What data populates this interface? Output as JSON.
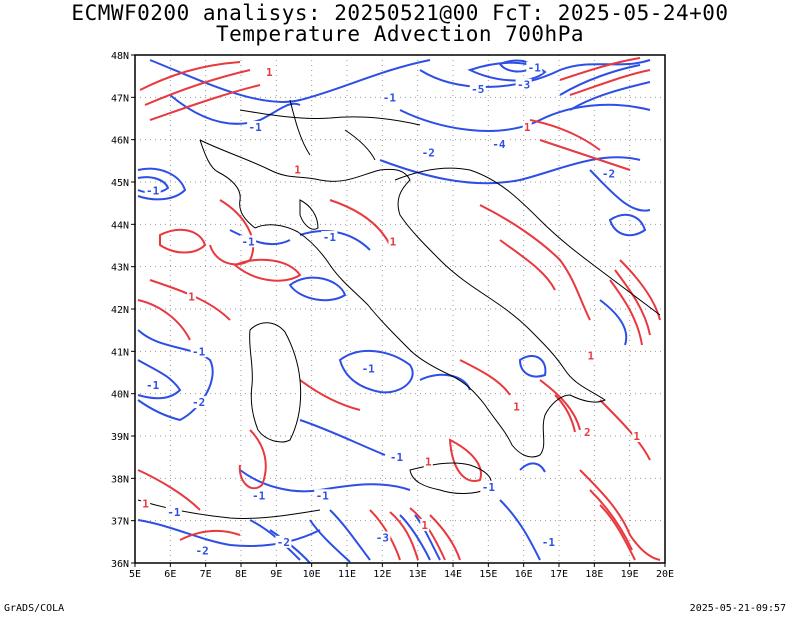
{
  "header": {
    "title_line1": "ECMWF0200 analisys: 20250521@00 FcT: 2025-05-24+00",
    "title_line2": "Temperature Advection 700hPa"
  },
  "footer": {
    "left": "GrADS/COLA",
    "right": "2025-05-21-09:57"
  },
  "map": {
    "lon_ticks": [
      "5E",
      "6E",
      "7E",
      "8E",
      "9E",
      "10E",
      "11E",
      "12E",
      "13E",
      "14E",
      "15E",
      "16E",
      "17E",
      "18E",
      "19E",
      "20E"
    ],
    "lat_ticks": [
      "48N",
      "47N",
      "46N",
      "45N",
      "44N",
      "43N",
      "42N",
      "41N",
      "40N",
      "39N",
      "38N",
      "37N",
      "36N"
    ],
    "lon_range": [
      5,
      20
    ],
    "lat_range": [
      36,
      48
    ],
    "positive_color": "#e8393f",
    "negative_color": "#2d4fe6",
    "coast_color": "#000000",
    "grid_style": "dotted",
    "contour_labels": [
      {
        "text": "-1",
        "lon": 16.3,
        "lat": 47.7,
        "sign": "neg"
      },
      {
        "text": "-3",
        "lon": 16.0,
        "lat": 47.3,
        "sign": "neg"
      },
      {
        "text": "-5",
        "lon": 14.7,
        "lat": 47.2,
        "sign": "neg"
      },
      {
        "text": "-2",
        "lon": 13.3,
        "lat": 45.7,
        "sign": "neg"
      },
      {
        "text": "-4",
        "lon": 15.3,
        "lat": 45.9,
        "sign": "neg"
      },
      {
        "text": "-2",
        "lon": 18.4,
        "lat": 45.2,
        "sign": "neg"
      },
      {
        "text": "-1",
        "lon": 12.2,
        "lat": 47.0,
        "sign": "neg"
      },
      {
        "text": "-1",
        "lon": 8.4,
        "lat": 46.3,
        "sign": "neg"
      },
      {
        "text": "-1",
        "lon": 5.5,
        "lat": 44.8,
        "sign": "neg"
      },
      {
        "text": "-1",
        "lon": 8.2,
        "lat": 43.6,
        "sign": "neg"
      },
      {
        "text": "-1",
        "lon": 10.5,
        "lat": 43.7,
        "sign": "neg"
      },
      {
        "text": "-1",
        "lon": 6.8,
        "lat": 41.0,
        "sign": "neg"
      },
      {
        "text": "-1",
        "lon": 5.5,
        "lat": 40.2,
        "sign": "neg"
      },
      {
        "text": "-2",
        "lon": 6.8,
        "lat": 39.8,
        "sign": "neg"
      },
      {
        "text": "-1",
        "lon": 11.6,
        "lat": 40.6,
        "sign": "neg"
      },
      {
        "text": "-1",
        "lon": 12.4,
        "lat": 38.5,
        "sign": "neg"
      },
      {
        "text": "-1",
        "lon": 10.3,
        "lat": 37.6,
        "sign": "neg"
      },
      {
        "text": "-1",
        "lon": 8.5,
        "lat": 37.6,
        "sign": "neg"
      },
      {
        "text": "-1",
        "lon": 15.0,
        "lat": 37.8,
        "sign": "neg"
      },
      {
        "text": "-1",
        "lon": 6.1,
        "lat": 37.2,
        "sign": "neg"
      },
      {
        "text": "-2",
        "lon": 6.9,
        "lat": 36.3,
        "sign": "neg"
      },
      {
        "text": "-2",
        "lon": 9.2,
        "lat": 36.5,
        "sign": "neg"
      },
      {
        "text": "-3",
        "lon": 12.0,
        "lat": 36.6,
        "sign": "neg"
      },
      {
        "text": "-1",
        "lon": 16.7,
        "lat": 36.5,
        "sign": "neg"
      },
      {
        "text": "1",
        "lon": 8.8,
        "lat": 47.6,
        "sign": "pos"
      },
      {
        "text": "1",
        "lon": 16.1,
        "lat": 46.3,
        "sign": "pos"
      },
      {
        "text": "1",
        "lon": 9.6,
        "lat": 45.3,
        "sign": "pos"
      },
      {
        "text": "1",
        "lon": 12.3,
        "lat": 43.6,
        "sign": "pos"
      },
      {
        "text": "1",
        "lon": 6.6,
        "lat": 42.3,
        "sign": "pos"
      },
      {
        "text": "1",
        "lon": 15.8,
        "lat": 39.7,
        "sign": "pos"
      },
      {
        "text": "1",
        "lon": 5.3,
        "lat": 37.4,
        "sign": "pos"
      },
      {
        "text": "2",
        "lon": 17.8,
        "lat": 39.1,
        "sign": "pos"
      },
      {
        "text": "1",
        "lon": 19.2,
        "lat": 39.0,
        "sign": "pos"
      },
      {
        "text": "1",
        "lon": 17.9,
        "lat": 40.9,
        "sign": "pos"
      },
      {
        "text": "1",
        "lon": 13.3,
        "lat": 38.4,
        "sign": "pos"
      },
      {
        "text": "1",
        "lon": 13.2,
        "lat": 36.9,
        "sign": "pos"
      }
    ]
  }
}
